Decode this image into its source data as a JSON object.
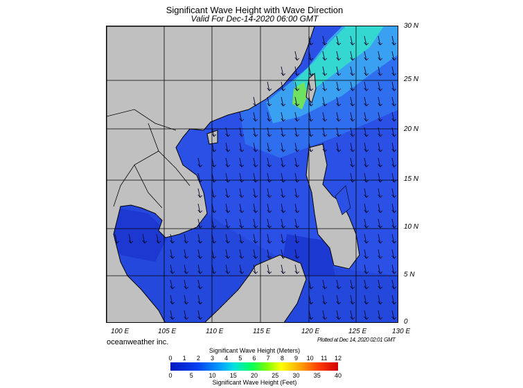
{
  "header": {
    "title": "Significant Wave Height with Wave Direction",
    "subtitle": "Valid For Dec-14-2020 06:00 GMT"
  },
  "map": {
    "lat_labels": [
      "30 N",
      "25 N",
      "20 N",
      "15 N",
      "10 N",
      "5 N",
      "0"
    ],
    "lon_labels": [
      "100 E",
      "105 E",
      "110 E",
      "115 E",
      "120 E",
      "125 E",
      "130 E"
    ],
    "region": "South China Sea",
    "dominant_wave_direction": "from northeast",
    "colors": {
      "land": "#c0c0c0",
      "sea_low": "#2a50e6",
      "sea_very_low": "#1a35d8",
      "sea_mid": "#3fa0f0",
      "sea_high": "#30e0c8",
      "sea_peak": "#70e060"
    }
  },
  "footer": {
    "brand": "oceanweather inc.",
    "plotted": "Plotted at Dec 14, 2020 02:01 GMT"
  },
  "colorbar": {
    "title_meters": "Significant Wave Height (Meters)",
    "title_feet": "Significant Wave Height (Feet)",
    "meters_ticks": [
      "0",
      "1",
      "2",
      "3",
      "4",
      "5",
      "6",
      "7",
      "8",
      "9",
      "10",
      "11",
      "12"
    ],
    "feet_ticks": [
      "0",
      "5",
      "10",
      "15",
      "20",
      "25",
      "30",
      "35",
      "40"
    ]
  }
}
